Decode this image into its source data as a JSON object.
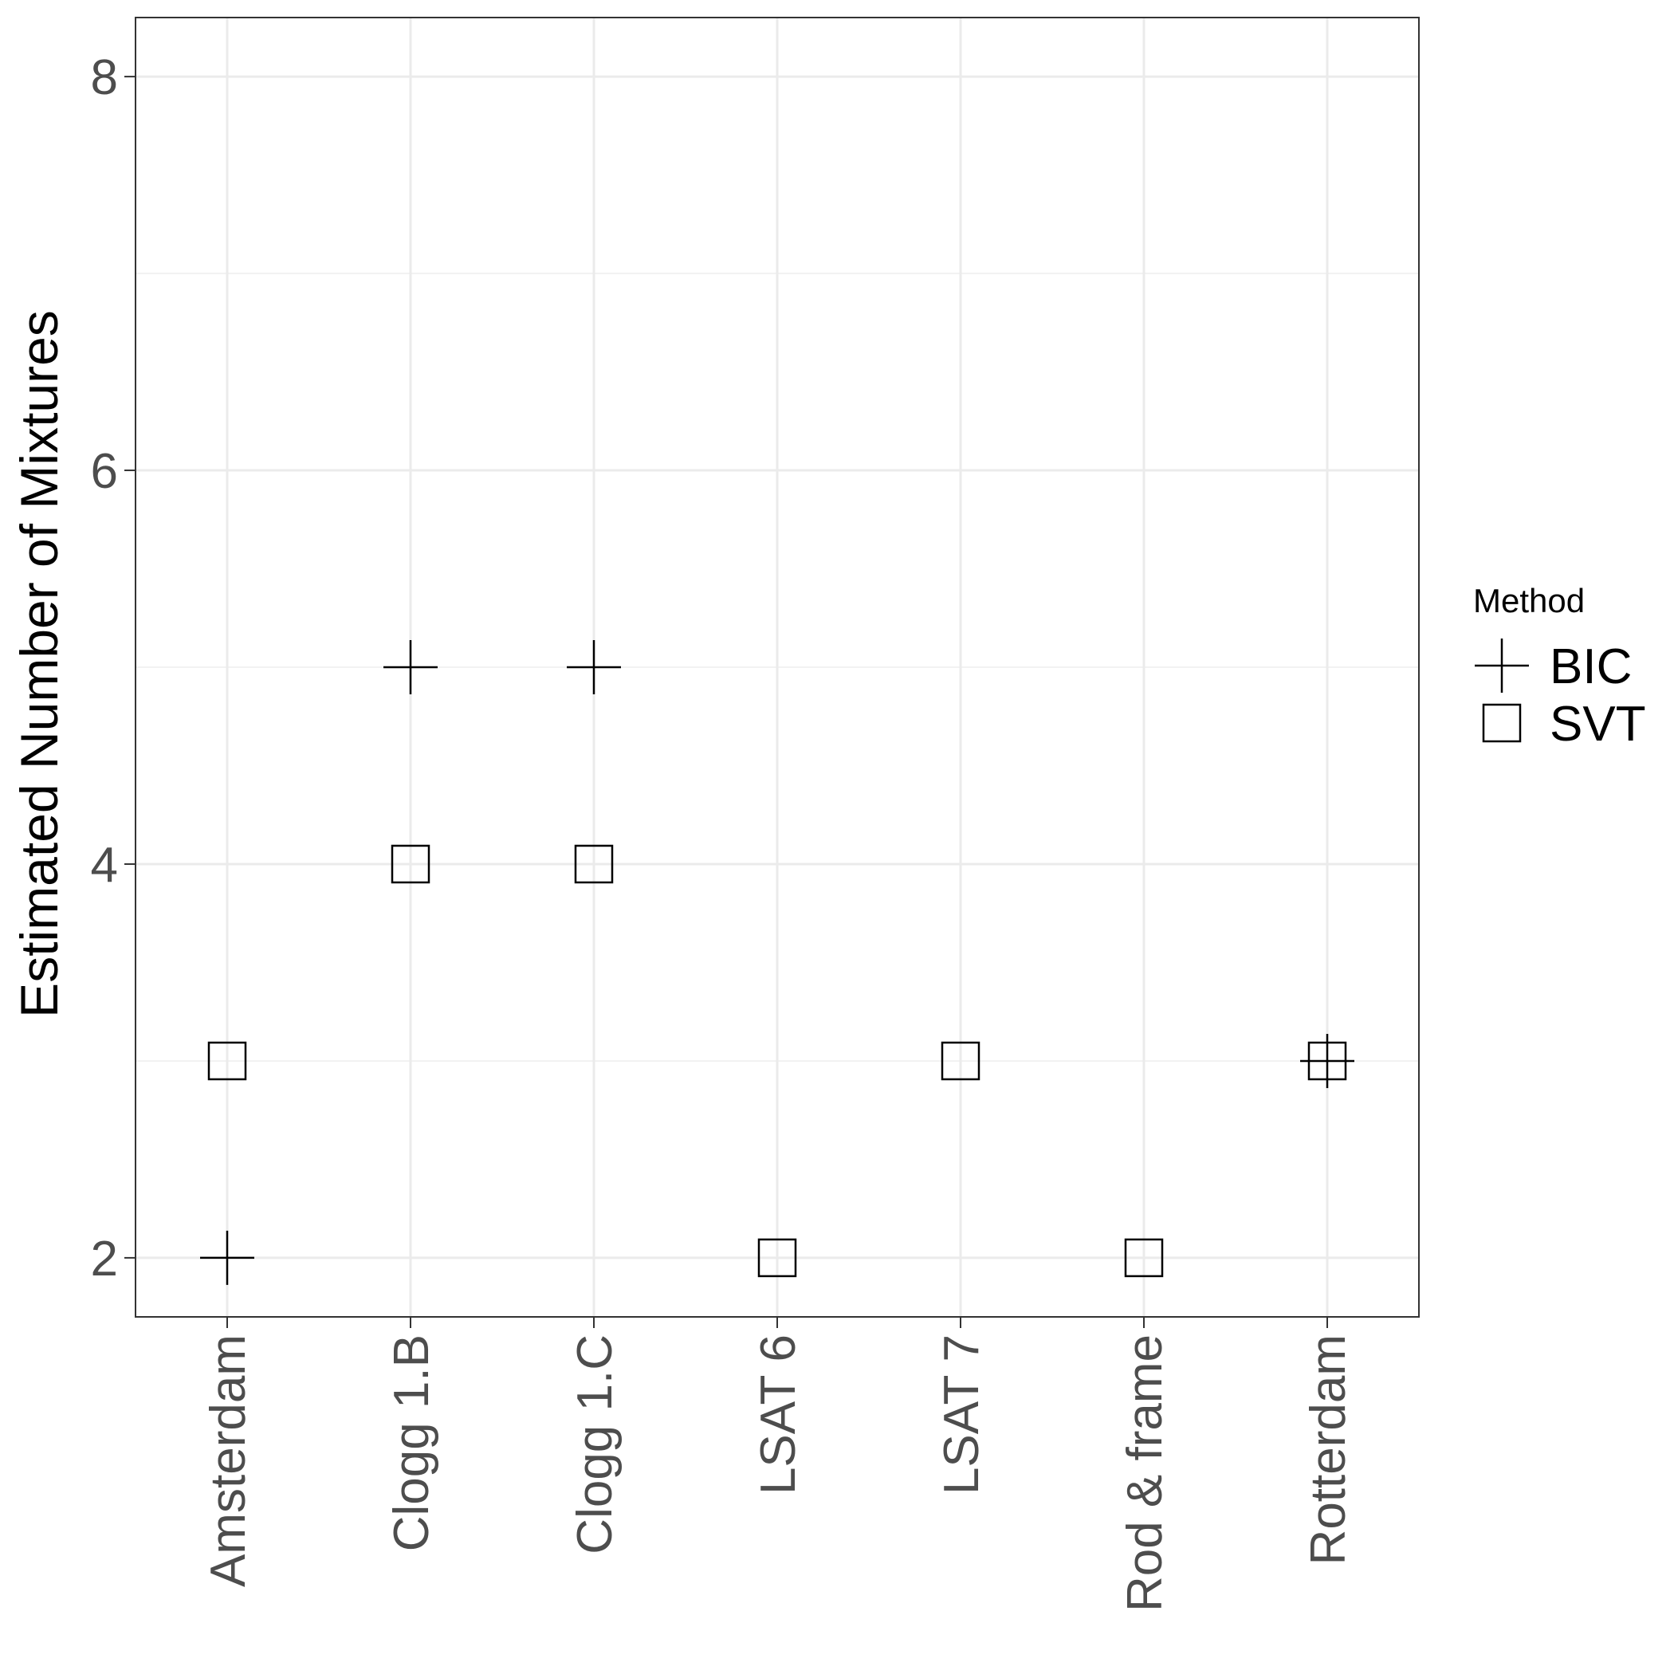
{
  "chart_data": {
    "type": "scatter",
    "title": "",
    "xlabel": "",
    "ylabel": "Estimated Number of Mixtures",
    "categories": [
      "Amsterdam",
      "Clogg 1.B",
      "Clogg 1.C",
      "LSAT 6",
      "LSAT 7",
      "Rod & frame",
      "Rotterdam"
    ],
    "ylim": [
      1.7,
      8.3
    ],
    "y_ticks": [
      2,
      4,
      6,
      8
    ],
    "y_tick_labels": [
      "2",
      "4",
      "6",
      "8"
    ],
    "grid": true,
    "legend": {
      "title": "Method",
      "position": "right"
    },
    "series": [
      {
        "name": "BIC",
        "marker": "plus",
        "values": [
          2,
          5,
          5,
          null,
          null,
          null,
          3
        ]
      },
      {
        "name": "SVT",
        "marker": "square-open",
        "values": [
          3,
          4,
          4,
          2,
          3,
          2,
          3
        ]
      }
    ]
  }
}
